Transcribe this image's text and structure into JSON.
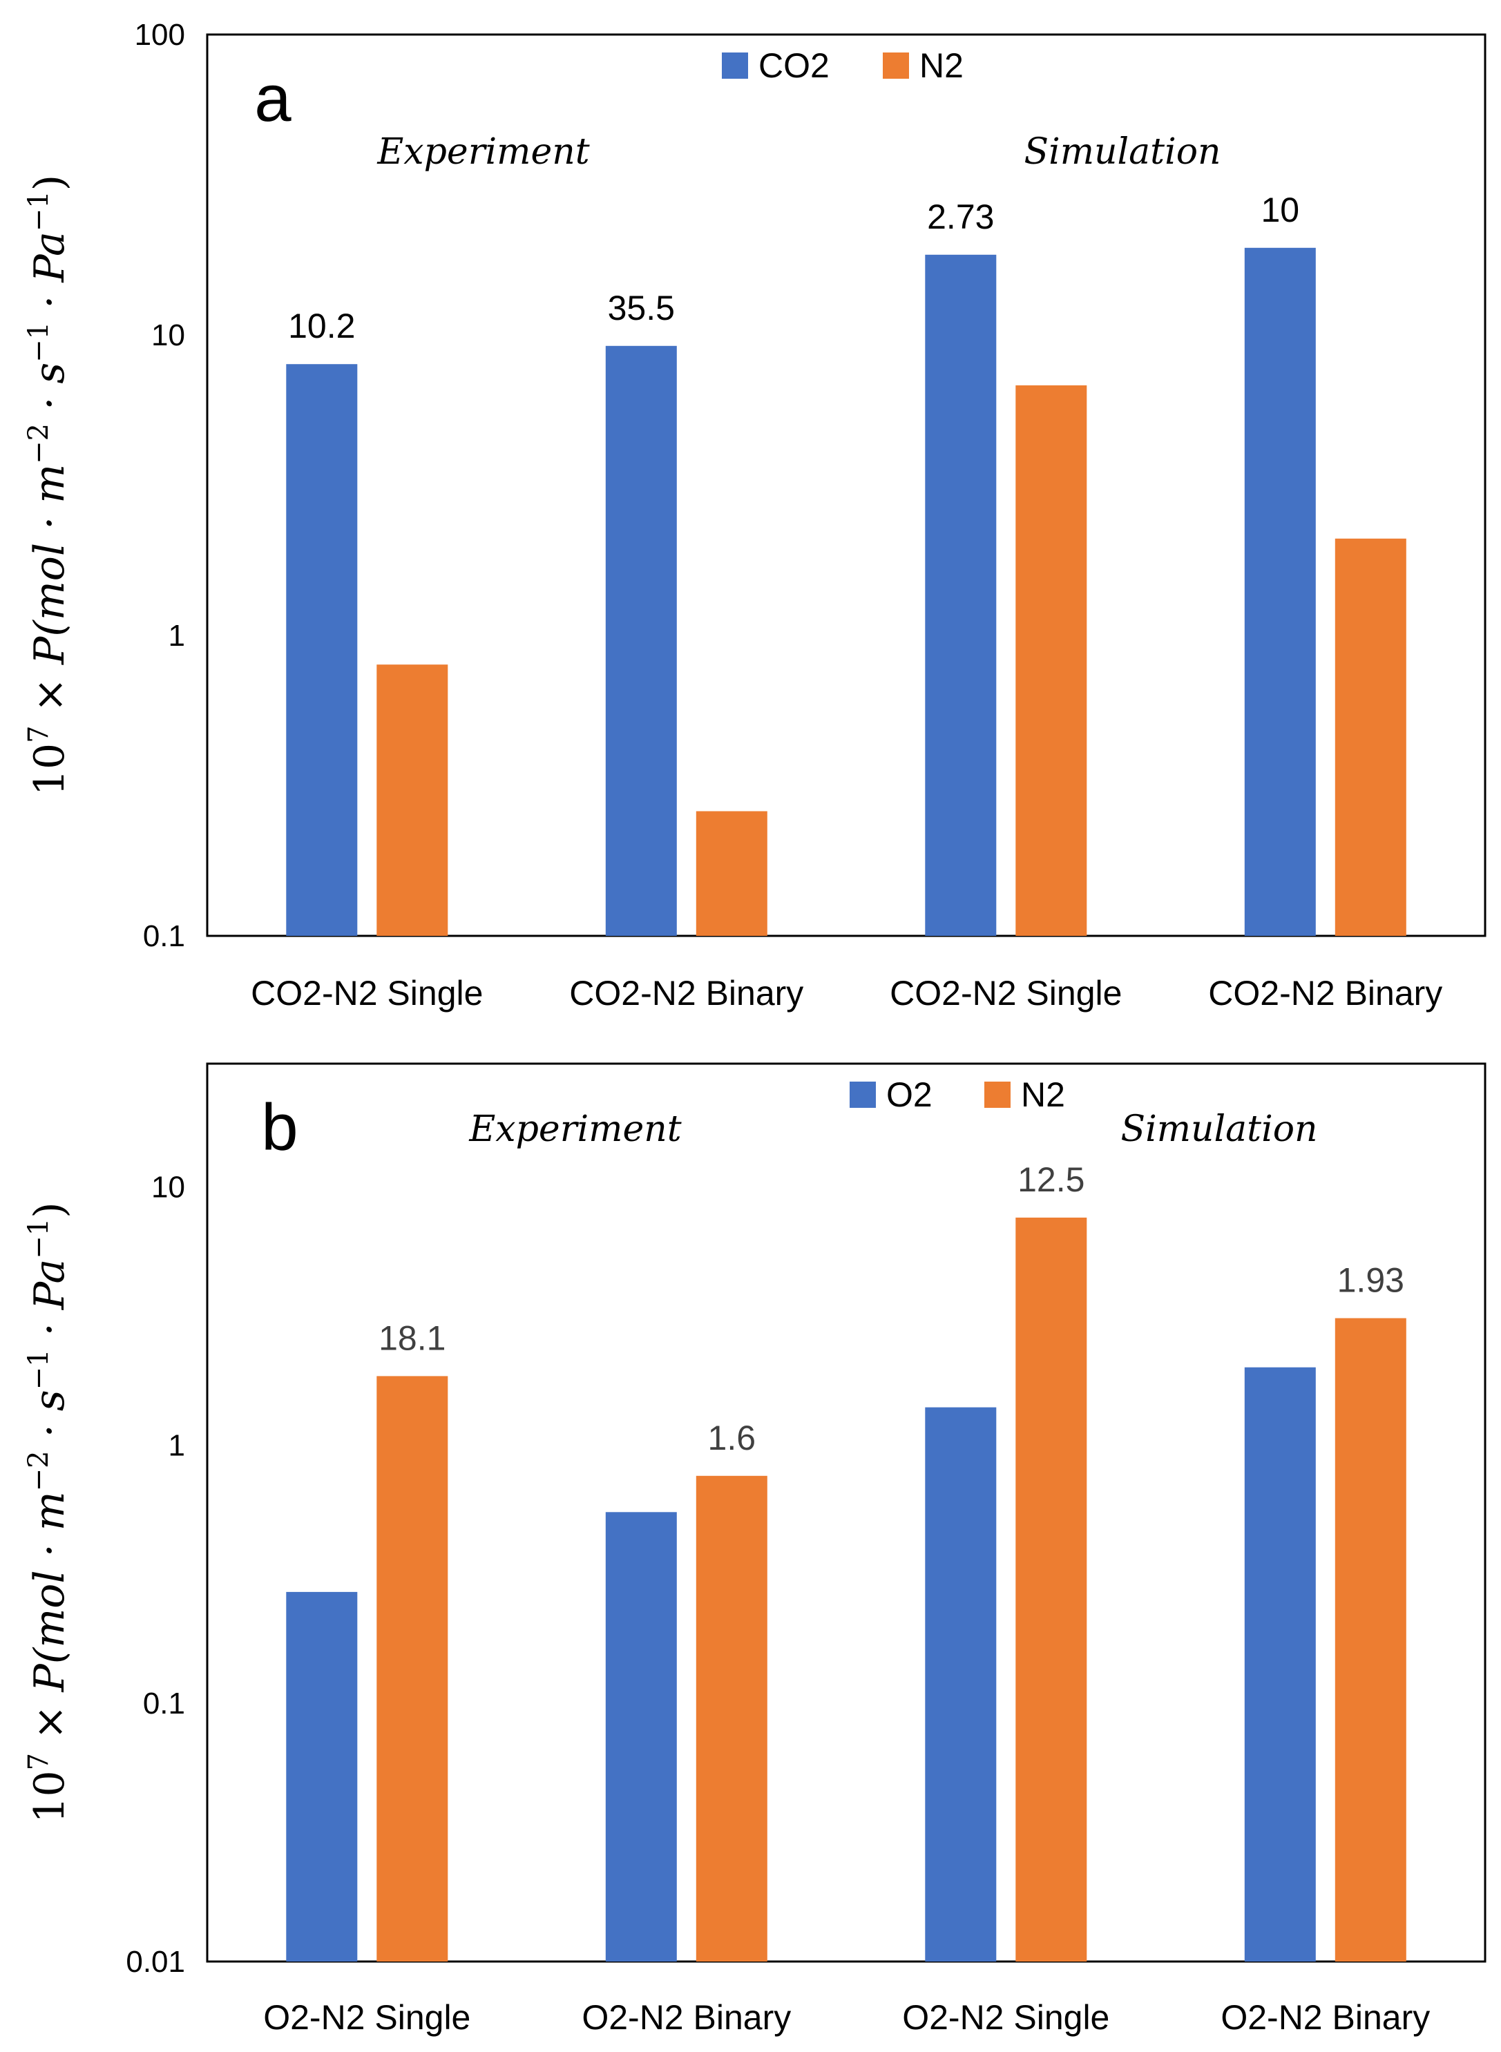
{
  "colors": {
    "primary": "#4472C4",
    "secondary": "#ED7D31",
    "frame": "#000000",
    "text": "#000000",
    "label_gray": "#404040"
  },
  "chart_data": [
    {
      "panel": "a",
      "type": "bar",
      "scale": "log",
      "ylim": [
        0.1,
        100
      ],
      "yticks": [
        {
          "value": 0.1,
          "label": "0.1"
        },
        {
          "value": 1,
          "label": "1"
        },
        {
          "value": 10,
          "label": "10"
        },
        {
          "value": 100,
          "label": "100"
        }
      ],
      "ylabel": {
        "prefix": "10",
        "exponent": "7",
        "times": " × ",
        "var": "P",
        "body": "(mol · m",
        "exp1": "−2",
        "mid": " · s",
        "exp2": "−1",
        "tail": " · Pa",
        "exp3": "−1",
        "close": ")"
      },
      "categories": [
        "CO2-N2 Single",
        "CO2-N2 Binary",
        "CO2-N2 Single",
        "CO2-N2 Binary"
      ],
      "series": [
        {
          "name": "CO2",
          "color": "#4472C4",
          "values": [
            8.0,
            9.2,
            18.5,
            19.5
          ]
        },
        {
          "name": "N2",
          "color": "#ED7D31",
          "values": [
            0.8,
            0.26,
            6.8,
            2.1
          ]
        }
      ],
      "data_labels": [
        {
          "category_index": 0,
          "series": "CO2",
          "text": "10.2"
        },
        {
          "category_index": 1,
          "series": "CO2",
          "text": "35.5"
        },
        {
          "category_index": 2,
          "series": "CO2",
          "text": "2.73"
        },
        {
          "category_index": 3,
          "series": "CO2",
          "text": "10"
        }
      ],
      "annotations": [
        {
          "text": "Experiment",
          "position": "upper-left"
        },
        {
          "text": "Simulation",
          "position": "upper-right"
        }
      ],
      "legend": "top-center",
      "grid": false
    },
    {
      "panel": "b",
      "type": "bar",
      "scale": "log",
      "ylim": [
        0.01,
        30
      ],
      "yticks": [
        {
          "value": 0.01,
          "label": "0.01"
        },
        {
          "value": 0.1,
          "label": "0.1"
        },
        {
          "value": 1,
          "label": "1"
        },
        {
          "value": 10,
          "label": "10"
        }
      ],
      "ylabel": {
        "prefix": "10",
        "exponent": "7",
        "times": " × ",
        "var": "P",
        "body": "(mol · m",
        "exp1": "−2",
        "mid": " · s",
        "exp2": "−1",
        "tail": " · Pa",
        "exp3": "−1",
        "close": ")"
      },
      "categories": [
        "O2-N2 Single",
        "O2-N2 Binary",
        "O2-N2 Single",
        "O2-N2 Binary"
      ],
      "series": [
        {
          "name": "O2",
          "color": "#4472C4",
          "values": [
            0.27,
            0.55,
            1.4,
            2.0
          ]
        },
        {
          "name": "N2",
          "color": "#ED7D31",
          "values": [
            1.85,
            0.76,
            7.6,
            3.1
          ]
        }
      ],
      "data_labels": [
        {
          "category_index": 0,
          "series": "N2",
          "text": "18.1"
        },
        {
          "category_index": 1,
          "series": "N2",
          "text": "1.6"
        },
        {
          "category_index": 2,
          "series": "N2",
          "text": "12.5"
        },
        {
          "category_index": 3,
          "series": "N2",
          "text": "1.93"
        }
      ],
      "annotations": [
        {
          "text": "Experiment",
          "position": "upper-left"
        },
        {
          "text": "Simulation",
          "position": "upper-right"
        }
      ],
      "legend": "top-center",
      "grid": false
    }
  ]
}
